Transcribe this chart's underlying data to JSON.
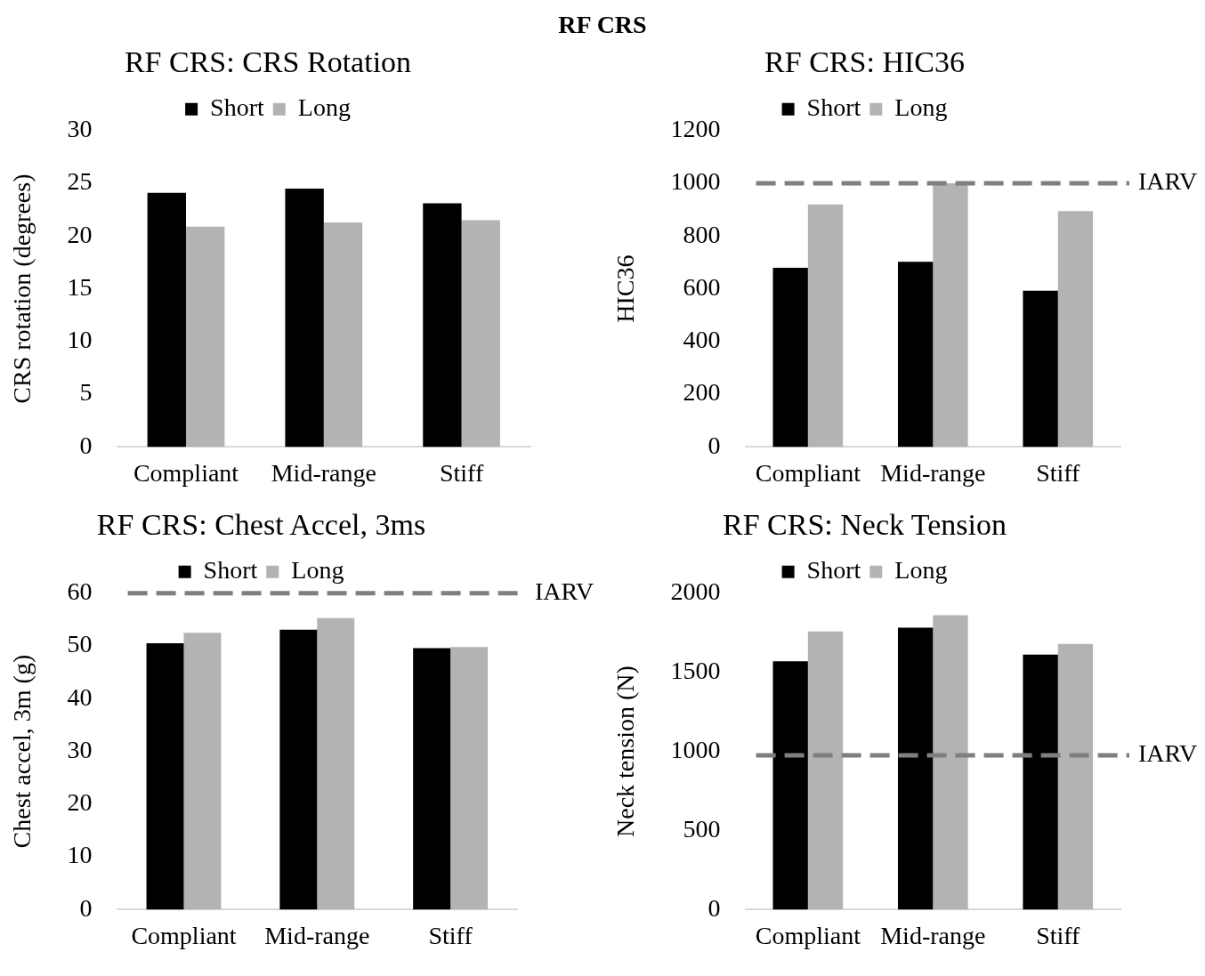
{
  "chart_data": [
    {
      "type": "other",
      "title": "RF CRS"
    },
    {
      "type": "bar",
      "title": "RF CRS: CRS Rotation",
      "ylabel": "CRS rotation (degrees)",
      "categories": [
        "Compliant",
        "Mid-range",
        "Stiff"
      ],
      "series": [
        {
          "name": "Short",
          "color": "#000000",
          "values": [
            24.1,
            24.5,
            23.1
          ]
        },
        {
          "name": "Long",
          "color": "#b3b3b5",
          "values": [
            20.9,
            21.3,
            21.5
          ]
        }
      ],
      "ylim": [
        0,
        30
      ],
      "yticks": [
        0,
        5,
        10,
        15,
        20,
        25,
        30
      ],
      "grid": false,
      "legend": "top"
    },
    {
      "type": "bar",
      "title": "RF CRS: HIC36",
      "ylabel": "HIC36",
      "categories": [
        "Compliant",
        "Mid-range",
        "Stiff"
      ],
      "series": [
        {
          "name": "Short",
          "color": "#000000",
          "values": [
            680,
            702,
            593
          ]
        },
        {
          "name": "Long",
          "color": "#b3b3b5",
          "values": [
            920,
            1000,
            895
          ]
        }
      ],
      "ylim": [
        0,
        1200
      ],
      "yticks": [
        0,
        200,
        400,
        600,
        800,
        1000,
        1200
      ],
      "grid": false,
      "legend": "top",
      "ref_lines": [
        {
          "axis": "y",
          "value": 1000,
          "label": "IARV",
          "color": "#7f7f7f",
          "line_style": "dashed"
        }
      ]
    },
    {
      "type": "bar",
      "title": "RF CRS: Chest Accel, 3ms",
      "ylabel": "Chest accel, 3m (g)",
      "categories": [
        "Compliant",
        "Mid-range",
        "Stiff"
      ],
      "series": [
        {
          "name": "Short",
          "color": "#000000",
          "values": [
            50.5,
            53.1,
            49.6
          ]
        },
        {
          "name": "Long",
          "color": "#b3b3b5",
          "values": [
            52.5,
            55.3,
            49.8
          ]
        }
      ],
      "ylim": [
        0,
        60
      ],
      "yticks": [
        0,
        10,
        20,
        30,
        40,
        50,
        60
      ],
      "grid": false,
      "legend": "top",
      "ref_lines": [
        {
          "axis": "y",
          "value": 60,
          "label": "IARV",
          "color": "#7f7f7f",
          "line_style": "dashed"
        }
      ]
    },
    {
      "type": "bar",
      "title": "RF CRS: Neck Tension",
      "ylabel": "Neck tension (N)",
      "categories": [
        "Compliant",
        "Mid-range",
        "Stiff"
      ],
      "series": [
        {
          "name": "Short",
          "color": "#000000",
          "values": [
            1570,
            1782,
            1612
          ]
        },
        {
          "name": "Long",
          "color": "#b3b3b5",
          "values": [
            1758,
            1861,
            1679
          ]
        }
      ],
      "ylim": [
        0,
        2000
      ],
      "yticks": [
        0,
        500,
        1000,
        1500,
        2000
      ],
      "grid": false,
      "legend": "top",
      "ref_lines": [
        {
          "axis": "y",
          "value": 975,
          "label": "IARV",
          "color": "#7f7f7f",
          "line_style": "dashed"
        }
      ]
    }
  ]
}
